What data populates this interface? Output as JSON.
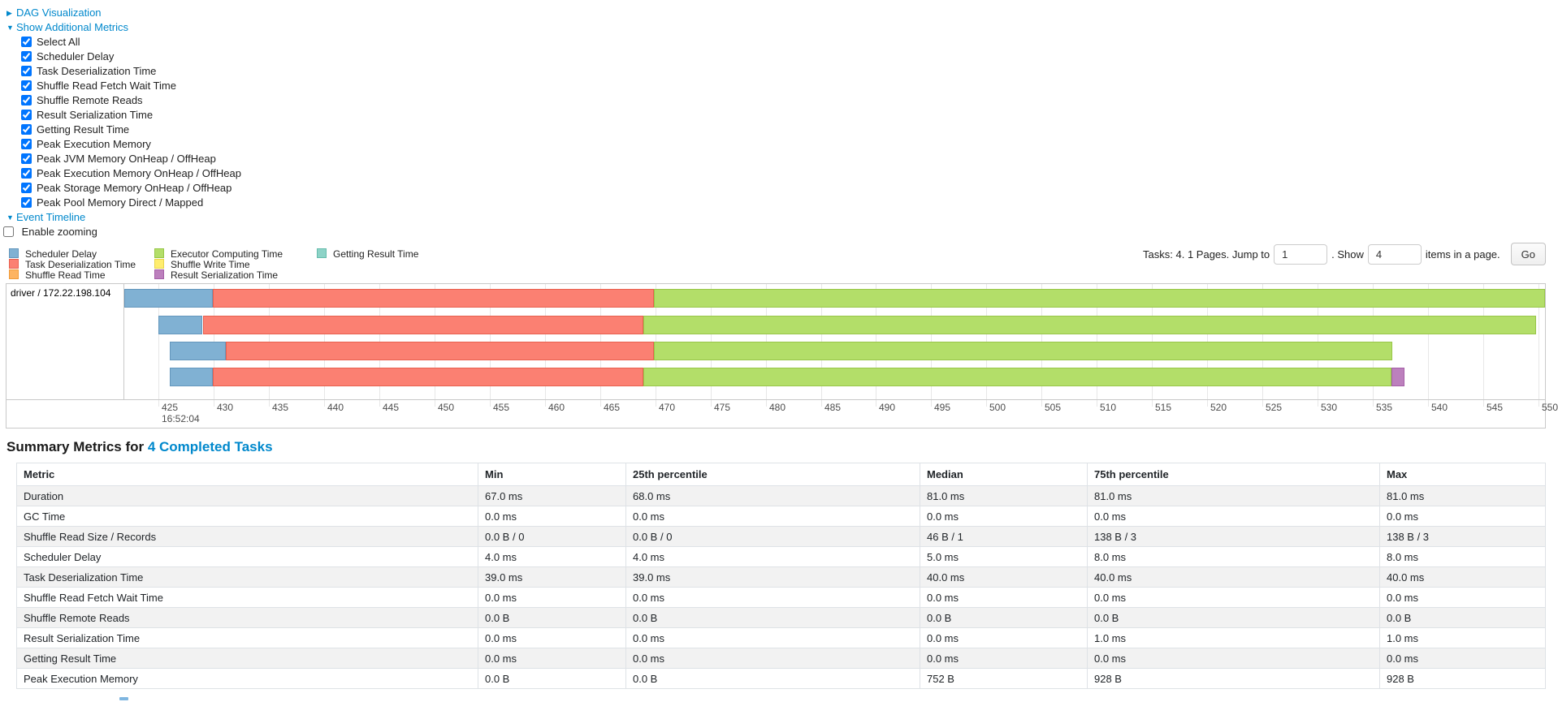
{
  "controls": {
    "dag_link": "DAG Visualization",
    "metrics_link": "Show Additional Metrics",
    "timeline_link": "Event Timeline",
    "checkboxes": [
      "Select All",
      "Scheduler Delay",
      "Task Deserialization Time",
      "Shuffle Read Fetch Wait Time",
      "Shuffle Remote Reads",
      "Result Serialization Time",
      "Getting Result Time",
      "Peak Execution Memory",
      "Peak JVM Memory OnHeap / OffHeap",
      "Peak Execution Memory OnHeap / OffHeap",
      "Peak Storage Memory OnHeap / OffHeap",
      "Peak Pool Memory Direct / Mapped"
    ],
    "enable_zooming_label": "Enable zooming"
  },
  "pagination": {
    "prefix": "Tasks: 4. 1 Pages. Jump to",
    "jump_value": "1",
    "middle": ". Show",
    "show_value": "4",
    "suffix": "items in a page.",
    "go_label": "Go"
  },
  "palette": {
    "scheduler_delay": {
      "label": "Scheduler Delay",
      "fill": "#80B1D3",
      "border": "#6497BD"
    },
    "task_deserialization": {
      "label": "Task Deserialization Time",
      "fill": "#FB8072",
      "border": "#E8604F"
    },
    "shuffle_read": {
      "label": "Shuffle Read Time",
      "fill": "#FDB462",
      "border": "#F09A38"
    },
    "executor_computing": {
      "label": "Executor Computing Time",
      "fill": "#B3DE69",
      "border": "#98C649"
    },
    "shuffle_write": {
      "label": "Shuffle Write Time",
      "fill": "#FFED6F",
      "border": "#E8D54A"
    },
    "result_serialization": {
      "label": "Result Serialization Time",
      "fill": "#BC80BD",
      "border": "#A55FA7"
    },
    "getting_result": {
      "label": "Getting Result Time",
      "fill": "#8DD3C7",
      "border": "#65BCAC"
    }
  },
  "legend_columns": [
    [
      "scheduler_delay",
      "task_deserialization",
      "shuffle_read"
    ],
    [
      "executor_computing",
      "shuffle_write",
      "result_serialization"
    ],
    [
      "getting_result"
    ]
  ],
  "timeline": {
    "group_label": "driver / 172.22.198.104",
    "axis": {
      "unit": "ms within second",
      "domain_min": 421.9,
      "domain_max": 550.6,
      "ticks": [
        425,
        430,
        435,
        440,
        445,
        450,
        455,
        460,
        465,
        470,
        475,
        480,
        485,
        490,
        495,
        500,
        505,
        510,
        515,
        520,
        525,
        530,
        535,
        540,
        545,
        550
      ],
      "major_label": "16:52:04",
      "major_label_at": 425
    },
    "tasks": [
      {
        "segments": [
          {
            "type": "scheduler_delay",
            "start": 421.9,
            "end": 429.9
          },
          {
            "type": "task_deserialization",
            "start": 429.9,
            "end": 469.9
          },
          {
            "type": "executor_computing",
            "start": 469.9,
            "end": 550.6
          }
        ]
      },
      {
        "segments": [
          {
            "type": "scheduler_delay",
            "start": 425.0,
            "end": 429.0
          },
          {
            "type": "task_deserialization",
            "start": 429.0,
            "end": 468.9
          },
          {
            "type": "executor_computing",
            "start": 468.9,
            "end": 549.8
          }
        ]
      },
      {
        "segments": [
          {
            "type": "scheduler_delay",
            "start": 426.0,
            "end": 431.1
          },
          {
            "type": "task_deserialization",
            "start": 431.1,
            "end": 469.9
          },
          {
            "type": "executor_computing",
            "start": 469.9,
            "end": 536.8
          }
        ]
      },
      {
        "segments": [
          {
            "type": "scheduler_delay",
            "start": 426.0,
            "end": 429.9
          },
          {
            "type": "task_deserialization",
            "start": 429.9,
            "end": 468.9
          },
          {
            "type": "executor_computing",
            "start": 468.9,
            "end": 536.7
          },
          {
            "type": "result_serialization",
            "start": 536.7,
            "end": 537.9
          }
        ]
      }
    ]
  },
  "summary": {
    "heading_prefix": "Summary Metrics for ",
    "heading_link": "4 Completed Tasks",
    "columns": [
      "Metric",
      "Min",
      "25th percentile",
      "Median",
      "75th percentile",
      "Max"
    ],
    "rows": [
      [
        "Duration",
        "67.0 ms",
        "68.0 ms",
        "81.0 ms",
        "81.0 ms",
        "81.0 ms"
      ],
      [
        "GC Time",
        "0.0 ms",
        "0.0 ms",
        "0.0 ms",
        "0.0 ms",
        "0.0 ms"
      ],
      [
        "Shuffle Read Size / Records",
        "0.0 B / 0",
        "0.0 B / 0",
        "46 B / 1",
        "138 B / 3",
        "138 B / 3"
      ],
      [
        "Scheduler Delay",
        "4.0 ms",
        "4.0 ms",
        "5.0 ms",
        "8.0 ms",
        "8.0 ms"
      ],
      [
        "Task Deserialization Time",
        "39.0 ms",
        "39.0 ms",
        "40.0 ms",
        "40.0 ms",
        "40.0 ms"
      ],
      [
        "Shuffle Read Fetch Wait Time",
        "0.0 ms",
        "0.0 ms",
        "0.0 ms",
        "0.0 ms",
        "0.0 ms"
      ],
      [
        "Shuffle Remote Reads",
        "0.0 B",
        "0.0 B",
        "0.0 B",
        "0.0 B",
        "0.0 B"
      ],
      [
        "Result Serialization Time",
        "0.0 ms",
        "0.0 ms",
        "0.0 ms",
        "1.0 ms",
        "1.0 ms"
      ],
      [
        "Getting Result Time",
        "0.0 ms",
        "0.0 ms",
        "0.0 ms",
        "0.0 ms",
        "0.0 ms"
      ],
      [
        "Peak Execution Memory",
        "0.0 B",
        "0.0 B",
        "752 B",
        "928 B",
        "928 B"
      ]
    ]
  },
  "colors": {
    "link": "#0088cc",
    "grid": "#e7e7e7",
    "chart_border": "#c9c9c9",
    "stripe": "#f2f2f2"
  }
}
